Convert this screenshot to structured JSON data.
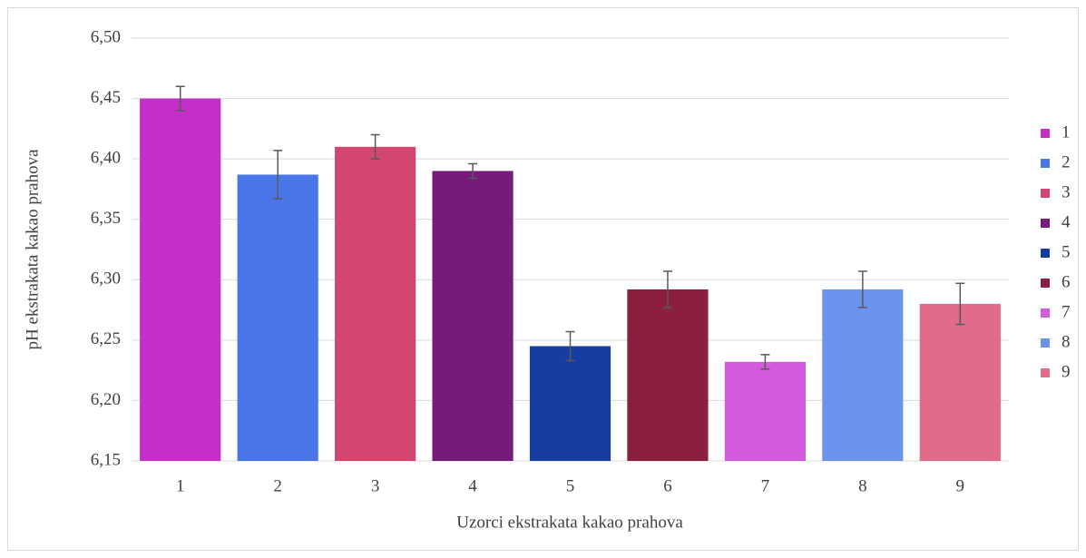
{
  "chart_data": {
    "type": "bar",
    "x_label": "Uzorci ekstrakata kakao prahova",
    "y_label": "pH ekstrakata kakao prahova",
    "categories": [
      "1",
      "2",
      "3",
      "4",
      "5",
      "6",
      "7",
      "8",
      "9"
    ],
    "values": [
      6.45,
      6.387,
      6.41,
      6.39,
      6.245,
      6.292,
      6.232,
      6.292,
      6.28
    ],
    "errors": [
      0.01,
      0.02,
      0.01,
      0.006,
      0.012,
      0.015,
      0.006,
      0.015,
      0.017
    ],
    "colors": [
      "#c42fc9",
      "#4a76e8",
      "#d4466f",
      "#761b7a",
      "#163ea0",
      "#8a1f3e",
      "#d15bdc",
      "#6b93ec",
      "#e06b8b"
    ],
    "ylim": [
      6.15,
      6.5
    ],
    "yticks": [
      {
        "value": 6.15,
        "label": "6,15"
      },
      {
        "value": 6.2,
        "label": "6,20"
      },
      {
        "value": 6.25,
        "label": "6,25"
      },
      {
        "value": 6.3,
        "label": "6,30"
      },
      {
        "value": 6.35,
        "label": "6,35"
      },
      {
        "value": 6.4,
        "label": "6,40"
      },
      {
        "value": 6.45,
        "label": "6,45"
      },
      {
        "value": 6.5,
        "label": "6,50"
      }
    ],
    "grid": true,
    "legend": "right"
  }
}
